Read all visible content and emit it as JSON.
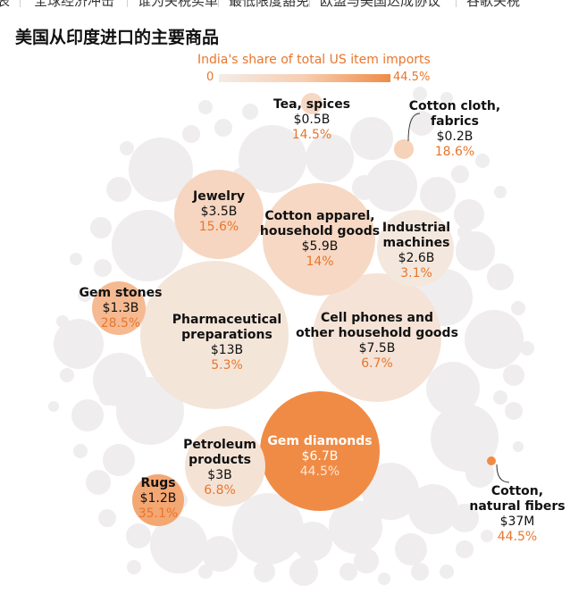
{
  "nav": [
    "表",
    "全球经济冲击",
    "谁为关税买单",
    "最低限度豁免",
    "欧盟与美国达成协议",
    "谷歌关税"
  ],
  "title": "美国从印度进口的主要商品",
  "legend": {
    "title": "India's share of total US item imports",
    "min_label": "0",
    "max_label": "44.5%",
    "colors": [
      "#f3ece6",
      "#f7cdb0",
      "#f08b45"
    ]
  },
  "chart_data": {
    "type": "bubble",
    "title": "美国从印度进口的主要商品",
    "color_scale": {
      "label": "India's share of total US item imports",
      "min": 0,
      "max": 44.5,
      "unit": "%"
    },
    "items": [
      {
        "name": "Pharmaceutical\npreparations",
        "value_label": "$13B",
        "value_billion": 13,
        "share_label": "5.3%",
        "share": 5.3
      },
      {
        "name": "Cell phones and\nother household goods",
        "value_label": "$7.5B",
        "value_billion": 7.5,
        "share_label": "6.7%",
        "share": 6.7
      },
      {
        "name": "Gem diamonds",
        "value_label": "$6.7B",
        "value_billion": 6.7,
        "share_label": "44.5%",
        "share": 44.5
      },
      {
        "name": "Cotton apparel,\nhousehold goods",
        "value_label": "$5.9B",
        "value_billion": 5.9,
        "share_label": "14%",
        "share": 14
      },
      {
        "name": "Jewelry",
        "value_label": "$3.5B",
        "value_billion": 3.5,
        "share_label": "15.6%",
        "share": 15.6
      },
      {
        "name": "Petroleum\nproducts",
        "value_label": "$3B",
        "value_billion": 3,
        "share_label": "6.8%",
        "share": 6.8
      },
      {
        "name": "Industrial\nmachines",
        "value_label": "$2.6B",
        "value_billion": 2.6,
        "share_label": "3.1%",
        "share": 3.1
      },
      {
        "name": "Gem stones",
        "value_label": "$1.3B",
        "value_billion": 1.3,
        "share_label": "28.5%",
        "share": 28.5
      },
      {
        "name": "Rugs",
        "value_label": "$1.2B",
        "value_billion": 1.2,
        "share_label": "35.1%",
        "share": 35.1
      },
      {
        "name": "Tea, spices",
        "value_label": "$0.5B",
        "value_billion": 0.5,
        "share_label": "14.5%",
        "share": 14.5
      },
      {
        "name": "Cotton cloth,\nfabrics",
        "value_label": "$0.2B",
        "value_billion": 0.2,
        "share_label": "18.6%",
        "share": 18.6
      },
      {
        "name": "Cotton,\nnatural fibers",
        "value_label": "$37M",
        "value_billion": 0.037,
        "share_label": "44.5%",
        "share": 44.5
      }
    ]
  }
}
